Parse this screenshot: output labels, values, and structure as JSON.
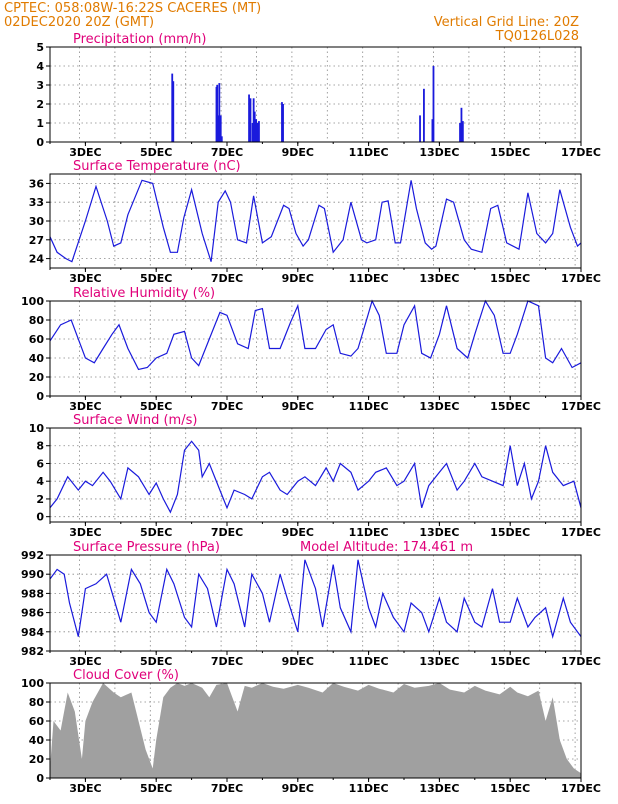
{
  "header": {
    "line1_left": "CPTEC:   058:08W-16:22S   CACERES (MT)",
    "line2_left": "02DEC2020 20Z (GMT)",
    "line2_right": "Vertical Grid Line: 20Z",
    "line3_right": "TQ0126L028"
  },
  "colors": {
    "header": "#e07b00",
    "panel_title": "#e0007a",
    "series": "#1a1adc",
    "cloud": "#a0a0a0"
  },
  "chart_data": [
    {
      "id": "precip",
      "type": "bar",
      "title": "Precipitation (mm/h)",
      "ylim": [
        0,
        5
      ],
      "yticks": [
        0,
        1,
        2,
        3,
        4,
        5
      ],
      "xlim": [
        2.0,
        17.0
      ],
      "xticks": [
        "3DEC",
        "5DEC",
        "7DEC",
        "9DEC",
        "11DEC",
        "13DEC",
        "15DEC",
        "17DEC"
      ],
      "grid": true,
      "x": [
        5.45,
        5.48,
        6.7,
        6.72,
        6.75,
        6.78,
        6.82,
        6.85,
        7.62,
        7.66,
        7.72,
        7.75,
        7.78,
        7.82,
        7.86,
        7.9,
        8.55,
        8.58,
        12.45,
        12.56,
        12.8,
        12.83,
        13.58,
        13.62,
        13.66
      ],
      "values": [
        3.6,
        3.2,
        2.9,
        3.0,
        1.4,
        3.1,
        1.4,
        0.3,
        2.5,
        2.3,
        1.0,
        2.3,
        1.6,
        1.2,
        1.0,
        1.1,
        2.1,
        2.0,
        1.4,
        2.8,
        1.2,
        4.0,
        1.0,
        1.8,
        1.1
      ]
    },
    {
      "id": "temp",
      "type": "line",
      "title": "Surface Temperature (nC)",
      "ylim": [
        22.5,
        37.5
      ],
      "yticks": [
        24,
        27,
        30,
        33,
        36
      ],
      "xlim": [
        2.0,
        17.0
      ],
      "xticks": [
        "3DEC",
        "5DEC",
        "7DEC",
        "9DEC",
        "11DEC",
        "13DEC",
        "15DEC",
        "17DEC"
      ],
      "grid": true,
      "x": [
        2.0,
        2.2,
        2.45,
        2.62,
        3.0,
        3.3,
        3.62,
        3.8,
        4.0,
        4.2,
        4.6,
        4.9,
        5.2,
        5.4,
        5.6,
        5.78,
        6.0,
        6.3,
        6.55,
        6.75,
        6.95,
        7.1,
        7.3,
        7.55,
        7.75,
        8.0,
        8.25,
        8.6,
        8.75,
        8.95,
        9.15,
        9.3,
        9.6,
        9.75,
        10.0,
        10.28,
        10.5,
        10.8,
        10.95,
        11.2,
        11.38,
        11.55,
        11.75,
        11.9,
        12.2,
        12.35,
        12.6,
        12.78,
        12.9,
        13.2,
        13.4,
        13.7,
        13.9,
        14.2,
        14.45,
        14.65,
        14.9,
        15.25,
        15.5,
        15.75,
        16.0,
        16.2,
        16.4,
        16.7,
        16.9,
        17.0
      ],
      "values": [
        27.5,
        25.0,
        24.0,
        23.5,
        30.0,
        35.5,
        30.0,
        26.0,
        26.5,
        31.0,
        36.5,
        36.0,
        29.0,
        25.0,
        25.0,
        30.5,
        35.0,
        28.0,
        23.5,
        33.0,
        34.8,
        33.0,
        27.0,
        26.5,
        34.0,
        26.5,
        27.5,
        32.5,
        32.0,
        28.0,
        26.0,
        27.0,
        32.5,
        32.0,
        25.0,
        27.0,
        33.0,
        27.0,
        26.5,
        27.0,
        33.0,
        33.2,
        26.5,
        26.5,
        36.5,
        32.0,
        26.5,
        25.5,
        26.0,
        33.5,
        33.0,
        27.0,
        25.5,
        25.0,
        32.0,
        32.5,
        26.5,
        25.5,
        34.5,
        28.0,
        26.5,
        28.0,
        35.0,
        29.0,
        26.0,
        26.5
      ]
    },
    {
      "id": "rh",
      "type": "line",
      "title": "Relative Humidity (%)",
      "ylim": [
        0,
        100
      ],
      "yticks": [
        0,
        20,
        40,
        60,
        80,
        100
      ],
      "xlim": [
        2.0,
        17.0
      ],
      "xticks": [
        "3DEC",
        "5DEC",
        "7DEC",
        "9DEC",
        "11DEC",
        "13DEC",
        "15DEC",
        "17DEC"
      ],
      "grid": true,
      "x": [
        2.0,
        2.3,
        2.6,
        3.0,
        3.25,
        3.5,
        3.75,
        3.95,
        4.2,
        4.5,
        4.75,
        5.0,
        5.3,
        5.5,
        5.8,
        6.0,
        6.2,
        6.5,
        6.8,
        7.0,
        7.3,
        7.6,
        7.8,
        8.0,
        8.2,
        8.5,
        8.8,
        9.0,
        9.2,
        9.5,
        9.8,
        10.0,
        10.2,
        10.5,
        10.7,
        10.9,
        11.1,
        11.3,
        11.5,
        11.8,
        12.0,
        12.3,
        12.5,
        12.75,
        13.0,
        13.2,
        13.5,
        13.8,
        14.0,
        14.3,
        14.55,
        14.8,
        15.0,
        15.2,
        15.5,
        15.8,
        16.0,
        16.2,
        16.45,
        16.75,
        17.0
      ],
      "values": [
        58,
        75,
        80,
        40,
        35,
        50,
        65,
        75,
        50,
        28,
        30,
        40,
        45,
        65,
        68,
        40,
        32,
        60,
        88,
        85,
        55,
        50,
        90,
        92,
        50,
        50,
        78,
        95,
        50,
        50,
        70,
        75,
        45,
        42,
        50,
        75,
        100,
        85,
        45,
        45,
        75,
        95,
        45,
        40,
        65,
        95,
        50,
        40,
        65,
        100,
        85,
        45,
        45,
        65,
        100,
        95,
        40,
        35,
        50,
        30,
        35
      ]
    },
    {
      "id": "wind",
      "type": "line",
      "title": "Surface Wind (m/s)",
      "ylim": [
        -0.6,
        10
      ],
      "yticks": [
        0,
        2,
        4,
        6,
        8,
        10
      ],
      "xlim": [
        2.0,
        17.0
      ],
      "xticks": [
        "3DEC",
        "5DEC",
        "7DEC",
        "9DEC",
        "11DEC",
        "13DEC",
        "15DEC",
        "17DEC"
      ],
      "grid": true,
      "x": [
        2.0,
        2.2,
        2.5,
        2.8,
        3.0,
        3.2,
        3.5,
        3.7,
        4.0,
        4.2,
        4.5,
        4.8,
        5.0,
        5.2,
        5.4,
        5.6,
        5.8,
        6.0,
        6.2,
        6.3,
        6.5,
        6.8,
        7.0,
        7.2,
        7.5,
        7.7,
        8.0,
        8.2,
        8.5,
        8.7,
        9.0,
        9.2,
        9.5,
        9.8,
        10.0,
        10.2,
        10.5,
        10.7,
        11.0,
        11.2,
        11.5,
        11.8,
        12.0,
        12.3,
        12.5,
        12.7,
        13.0,
        13.2,
        13.5,
        13.7,
        14.0,
        14.2,
        14.5,
        14.8,
        15.0,
        15.2,
        15.4,
        15.6,
        15.8,
        16.0,
        16.2,
        16.5,
        16.8,
        17.0
      ],
      "values": [
        1.0,
        2.0,
        4.5,
        3.0,
        4.0,
        3.5,
        5.0,
        4.0,
        2.0,
        5.5,
        4.5,
        2.5,
        3.8,
        2.0,
        0.5,
        2.5,
        7.5,
        8.5,
        7.5,
        4.5,
        6.0,
        3.0,
        1.0,
        3.0,
        2.5,
        2.0,
        4.5,
        5.0,
        3.0,
        2.5,
        4.0,
        4.5,
        3.5,
        5.5,
        4.0,
        6.0,
        5.0,
        3.0,
        4.0,
        5.0,
        5.5,
        3.5,
        4.0,
        6.0,
        1.0,
        3.5,
        5.0,
        6.0,
        3.0,
        4.0,
        6.0,
        4.5,
        4.0,
        3.5,
        8.0,
        3.5,
        6.0,
        2.0,
        4.0,
        8.0,
        5.0,
        3.5,
        4.0,
        1.0
      ]
    },
    {
      "id": "pres",
      "type": "line",
      "title": "Surface Pressure (hPa)",
      "annotation": "Model Altitude: 174.461 m",
      "ylim": [
        982,
        992
      ],
      "yticks": [
        982,
        984,
        986,
        988,
        990,
        992
      ],
      "xlim": [
        2.0,
        17.0
      ],
      "xticks": [
        "3DEC",
        "5DEC",
        "7DEC",
        "9DEC",
        "11DEC",
        "13DEC",
        "15DEC",
        "17DEC"
      ],
      "grid": true,
      "x": [
        2.0,
        2.2,
        2.4,
        2.55,
        2.8,
        3.0,
        3.3,
        3.6,
        3.8,
        4.0,
        4.3,
        4.55,
        4.8,
        5.0,
        5.3,
        5.5,
        5.8,
        6.0,
        6.2,
        6.45,
        6.7,
        7.0,
        7.2,
        7.5,
        7.7,
        8.0,
        8.2,
        8.5,
        8.7,
        9.0,
        9.2,
        9.5,
        9.7,
        10.0,
        10.2,
        10.5,
        10.7,
        11.0,
        11.2,
        11.4,
        11.7,
        12.0,
        12.2,
        12.5,
        12.7,
        13.0,
        13.2,
        13.5,
        13.7,
        14.0,
        14.2,
        14.5,
        14.7,
        15.0,
        15.2,
        15.5,
        15.7,
        16.0,
        16.2,
        16.5,
        16.7,
        17.0
      ],
      "values": [
        989.5,
        990.5,
        990.0,
        987.0,
        983.5,
        988.5,
        989.0,
        990.0,
        987.5,
        985.0,
        990.5,
        989.0,
        986.0,
        985.0,
        990.5,
        989.0,
        985.5,
        984.5,
        990.0,
        988.5,
        984.5,
        990.5,
        989.0,
        984.5,
        990.0,
        988.0,
        985.0,
        990.0,
        987.5,
        984.0,
        991.5,
        988.5,
        984.5,
        991.0,
        986.5,
        984.0,
        991.5,
        986.5,
        984.5,
        988.0,
        985.5,
        984.0,
        987.0,
        986.0,
        984.0,
        987.5,
        985.0,
        984.0,
        987.5,
        985.0,
        984.5,
        988.5,
        985.0,
        985.0,
        987.5,
        984.5,
        985.5,
        986.5,
        983.5,
        987.5,
        985.0,
        983.5
      ]
    },
    {
      "id": "cloud",
      "type": "area",
      "title": "Cloud Cover (%)",
      "ylim": [
        0,
        100
      ],
      "yticks": [
        0,
        20,
        40,
        60,
        80,
        100
      ],
      "xlim": [
        2.0,
        17.0
      ],
      "xticks": [
        "3DEC",
        "5DEC",
        "7DEC",
        "9DEC",
        "11DEC",
        "13DEC",
        "15DEC",
        "17DEC"
      ],
      "grid": true,
      "x": [
        2.0,
        2.1,
        2.3,
        2.5,
        2.7,
        2.9,
        3.0,
        3.2,
        3.5,
        3.8,
        4.0,
        4.3,
        4.5,
        4.7,
        4.9,
        5.0,
        5.2,
        5.4,
        5.6,
        5.8,
        6.0,
        6.3,
        6.5,
        6.7,
        7.0,
        7.3,
        7.5,
        7.7,
        8.0,
        8.3,
        8.6,
        9.0,
        9.3,
        9.7,
        10.0,
        10.3,
        10.7,
        11.0,
        11.3,
        11.7,
        12.0,
        12.3,
        12.7,
        13.0,
        13.3,
        13.7,
        14.0,
        14.3,
        14.7,
        15.0,
        15.2,
        15.5,
        15.8,
        16.0,
        16.2,
        16.4,
        16.6,
        16.8,
        17.0
      ],
      "values": [
        10,
        60,
        50,
        90,
        70,
        20,
        60,
        80,
        100,
        90,
        85,
        90,
        60,
        30,
        10,
        40,
        85,
        95,
        100,
        97,
        100,
        95,
        85,
        98,
        100,
        70,
        97,
        95,
        100,
        96,
        94,
        98,
        95,
        90,
        100,
        96,
        92,
        98,
        94,
        90,
        99,
        95,
        97,
        100,
        93,
        90,
        97,
        92,
        88,
        96,
        90,
        86,
        92,
        60,
        85,
        40,
        20,
        10,
        5
      ]
    }
  ]
}
